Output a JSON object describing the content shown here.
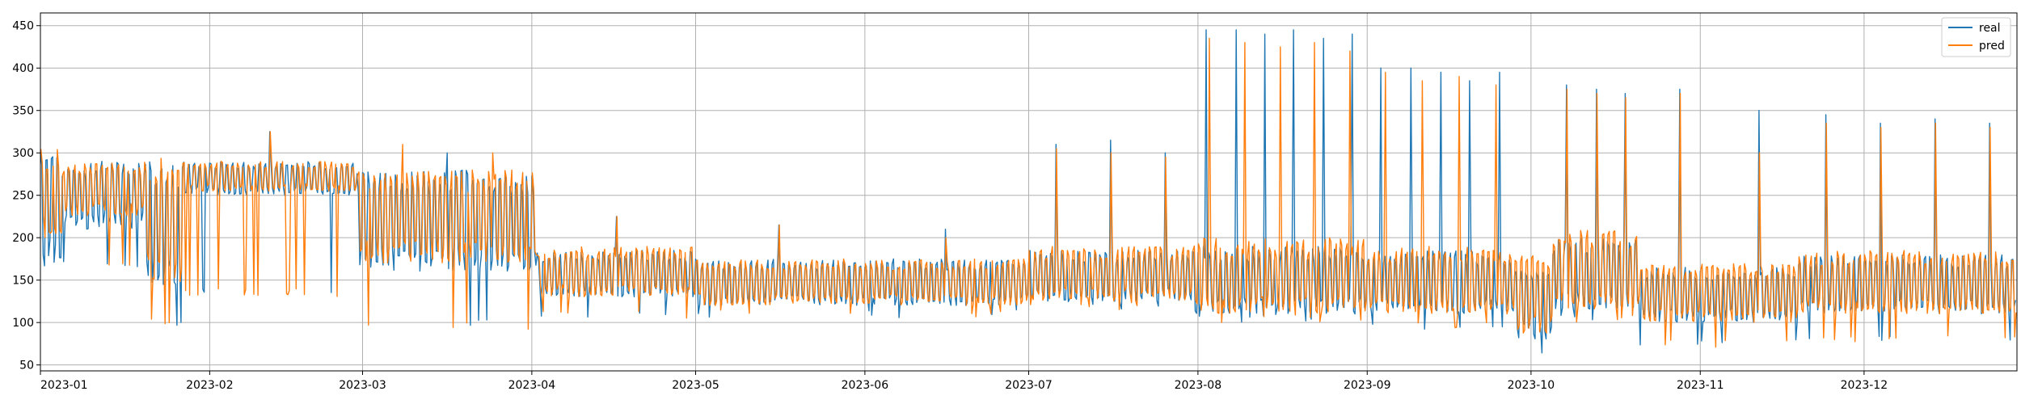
{
  "chart_data": {
    "type": "line",
    "title": "",
    "xlabel": "",
    "ylabel": "",
    "xlim": [
      "2023-01-01",
      "2023-12-29"
    ],
    "ylim": [
      43,
      465
    ],
    "grid": true,
    "legend_position": "top-right",
    "x_ticks": [
      "2023-01",
      "2023-02",
      "2023-03",
      "2023-04",
      "2023-05",
      "2023-06",
      "2023-07",
      "2023-08",
      "2023-09",
      "2023-10",
      "2023-11",
      "2023-12"
    ],
    "y_ticks": [
      50,
      100,
      150,
      200,
      250,
      300,
      350,
      400,
      450
    ],
    "series": [
      {
        "name": "real",
        "color": "#1f77b4",
        "segments": [
          {
            "from": "2023-01-01",
            "to": "2023-01-05",
            "low": 165,
            "high": 300,
            "dip": 165,
            "spikes": []
          },
          {
            "from": "2023-01-05",
            "to": "2023-01-20",
            "low": 210,
            "high": 290,
            "dip": 165,
            "spikes": []
          },
          {
            "from": "2023-01-20",
            "to": "2023-01-27",
            "low": 140,
            "high": 290,
            "dip": 95,
            "spikes": []
          },
          {
            "from": "2023-01-27",
            "to": "2023-02-28",
            "low": 250,
            "high": 290,
            "dip": 130,
            "spikes": [
              325
            ]
          },
          {
            "from": "2023-02-28",
            "to": "2023-04-02",
            "low": 160,
            "high": 280,
            "dip": 95,
            "spikes": [
              300
            ]
          },
          {
            "from": "2023-04-02",
            "to": "2023-05-01",
            "low": 130,
            "high": 185,
            "dip": 105,
            "spikes": [
              225
            ]
          },
          {
            "from": "2023-05-01",
            "to": "2023-07-01",
            "low": 120,
            "high": 175,
            "dip": 105,
            "spikes": [
              215,
              210
            ]
          },
          {
            "from": "2023-07-01",
            "to": "2023-07-31",
            "low": 125,
            "high": 185,
            "dip": 115,
            "spikes": [
              310,
              315,
              300
            ]
          },
          {
            "from": "2023-07-31",
            "to": "2023-09-01",
            "low": 110,
            "high": 190,
            "dip": 100,
            "spikes": [
              445,
              445,
              440,
              445,
              435,
              440
            ]
          },
          {
            "from": "2023-09-01",
            "to": "2023-09-28",
            "low": 110,
            "high": 185,
            "dip": 90,
            "spikes": [
              400,
              400,
              395,
              385,
              395
            ]
          },
          {
            "from": "2023-09-28",
            "to": "2023-10-05",
            "low": 80,
            "high": 170,
            "dip": 60,
            "spikes": []
          },
          {
            "from": "2023-10-05",
            "to": "2023-10-21",
            "low": 115,
            "high": 200,
            "dip": 100,
            "spikes": [
              380,
              375,
              370
            ]
          },
          {
            "from": "2023-10-21",
            "to": "2023-11-19",
            "low": 100,
            "high": 165,
            "dip": 70,
            "spikes": [
              375,
              350
            ]
          },
          {
            "from": "2023-11-19",
            "to": "2023-12-29",
            "low": 110,
            "high": 180,
            "dip": 75,
            "spikes": [
              345,
              335,
              340,
              335
            ]
          }
        ]
      },
      {
        "name": "pred",
        "color": "#ff7f0e",
        "segments": [
          {
            "from": "2023-01-01",
            "to": "2023-01-05",
            "low": 200,
            "high": 305,
            "dip": 200,
            "spikes": []
          },
          {
            "from": "2023-01-05",
            "to": "2023-01-20",
            "low": 225,
            "high": 290,
            "dip": 165,
            "spikes": []
          },
          {
            "from": "2023-01-20",
            "to": "2023-01-27",
            "low": 145,
            "high": 295,
            "dip": 95,
            "spikes": []
          },
          {
            "from": "2023-01-27",
            "to": "2023-02-28",
            "low": 255,
            "high": 290,
            "dip": 130,
            "spikes": [
              325
            ]
          },
          {
            "from": "2023-02-28",
            "to": "2023-04-02",
            "low": 170,
            "high": 280,
            "dip": 90,
            "spikes": [
              310,
              300
            ]
          },
          {
            "from": "2023-04-02",
            "to": "2023-05-01",
            "low": 130,
            "high": 190,
            "dip": 105,
            "spikes": [
              225
            ]
          },
          {
            "from": "2023-05-01",
            "to": "2023-07-01",
            "low": 120,
            "high": 175,
            "dip": 105,
            "spikes": [
              215,
              200
            ]
          },
          {
            "from": "2023-07-01",
            "to": "2023-07-31",
            "low": 125,
            "high": 190,
            "dip": 115,
            "spikes": [
              305,
              300,
              295
            ]
          },
          {
            "from": "2023-07-31",
            "to": "2023-09-01",
            "low": 110,
            "high": 200,
            "dip": 100,
            "spikes": [
              435,
              430,
              425,
              430,
              420
            ]
          },
          {
            "from": "2023-09-01",
            "to": "2023-09-28",
            "low": 110,
            "high": 190,
            "dip": 90,
            "spikes": [
              395,
              385,
              390,
              380
            ]
          },
          {
            "from": "2023-09-28",
            "to": "2023-10-05",
            "low": 85,
            "high": 180,
            "dip": 65,
            "spikes": []
          },
          {
            "from": "2023-10-05",
            "to": "2023-10-21",
            "low": 115,
            "high": 210,
            "dip": 100,
            "spikes": [
              375,
              370,
              365
            ]
          },
          {
            "from": "2023-10-21",
            "to": "2023-11-19",
            "low": 100,
            "high": 170,
            "dip": 70,
            "spikes": [
              370,
              300
            ]
          },
          {
            "from": "2023-11-19",
            "to": "2023-12-29",
            "low": 110,
            "high": 185,
            "dip": 75,
            "spikes": [
              335,
              330,
              335,
              330
            ]
          }
        ]
      }
    ]
  }
}
